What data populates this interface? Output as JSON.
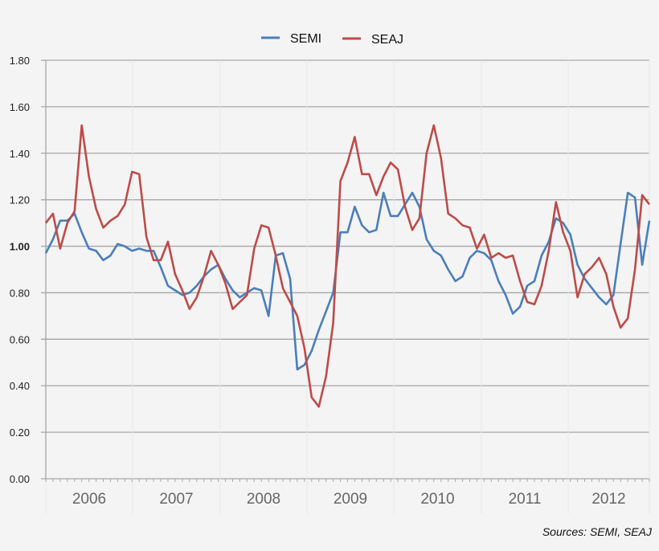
{
  "chart_data": {
    "type": "line",
    "title": "",
    "xlabel": "",
    "ylabel": "",
    "ylim": [
      0,
      1.8
    ],
    "yticks": [
      "0.00",
      "0.20",
      "0.40",
      "0.60",
      "0.80",
      "1.00",
      "1.20",
      "1.40",
      "1.60",
      "1.80"
    ],
    "bold_ytick": "1.00",
    "year_labels": [
      "2006",
      "2007",
      "2008",
      "2009",
      "2010",
      "2011",
      "2012"
    ],
    "grid": true,
    "legend_position": "top",
    "series": [
      {
        "name": "SEMI",
        "color": "#4a7ebb",
        "values": [
          0.97,
          1.03,
          1.11,
          1.11,
          1.14,
          1.06,
          0.99,
          0.98,
          0.94,
          0.96,
          1.01,
          1.0,
          0.98,
          0.99,
          0.98,
          0.98,
          0.91,
          0.83,
          0.81,
          0.79,
          0.8,
          0.83,
          0.87,
          0.9,
          0.92,
          0.86,
          0.81,
          0.78,
          0.8,
          0.82,
          0.81,
          0.7,
          0.96,
          0.97,
          0.86,
          0.47,
          0.49,
          0.55,
          0.64,
          0.72,
          0.8,
          1.06,
          1.06,
          1.17,
          1.09,
          1.06,
          1.07,
          1.23,
          1.13,
          1.13,
          1.18,
          1.23,
          1.17,
          1.03,
          0.98,
          0.96,
          0.9,
          0.85,
          0.87,
          0.95,
          0.98,
          0.97,
          0.94,
          0.85,
          0.79,
          0.71,
          0.74,
          0.83,
          0.85,
          0.96,
          1.02,
          1.12,
          1.1,
          1.05,
          0.92,
          0.86,
          0.82,
          0.78,
          0.75,
          0.79,
          1.01,
          1.23,
          1.21,
          0.92,
          1.11
        ]
      },
      {
        "name": "SEAJ",
        "color": "#be4b48",
        "values": [
          1.1,
          1.14,
          0.99,
          1.1,
          1.15,
          1.52,
          1.3,
          1.16,
          1.08,
          1.11,
          1.13,
          1.18,
          1.32,
          1.31,
          1.04,
          0.94,
          0.94,
          1.02,
          0.88,
          0.81,
          0.73,
          0.78,
          0.87,
          0.98,
          0.92,
          0.84,
          0.73,
          0.76,
          0.79,
          0.99,
          1.09,
          1.08,
          0.96,
          0.82,
          0.76,
          0.7,
          0.56,
          0.35,
          0.31,
          0.44,
          0.67,
          1.28,
          1.36,
          1.47,
          1.31,
          1.31,
          1.22,
          1.3,
          1.36,
          1.33,
          1.17,
          1.07,
          1.12,
          1.4,
          1.52,
          1.38,
          1.14,
          1.12,
          1.09,
          1.08,
          0.99,
          1.05,
          0.95,
          0.97,
          0.95,
          0.96,
          0.85,
          0.76,
          0.75,
          0.83,
          0.98,
          1.19,
          1.06,
          0.98,
          0.78,
          0.88,
          0.91,
          0.95,
          0.88,
          0.74,
          0.65,
          0.69,
          0.9,
          1.22,
          1.18
        ]
      }
    ],
    "source": "Sources: SEMI, SEAJ"
  }
}
